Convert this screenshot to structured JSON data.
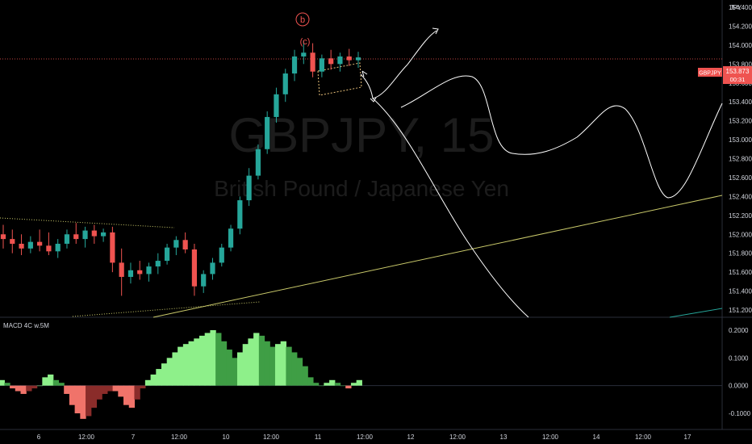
{
  "symbol": "GBPJPY",
  "interval": "15",
  "description": "British Pound / Japanese Yen",
  "currency": "JPY",
  "wave_labels": {
    "circled": "b",
    "paren": "(c)"
  },
  "indicator_label": "MACD 4C w.5M",
  "price_tag": {
    "symbol": "GBPJPY",
    "price": "153.873",
    "countdown": "00:31"
  },
  "colors": {
    "background": "#000000",
    "up": "#26a69a",
    "down": "#ef5350",
    "drawing": "#ffffff",
    "trendline": "#c9c96a",
    "wave_label": "#ef5350",
    "macd_light_green": "#8ef08a",
    "macd_dark_green": "#3f9e45",
    "macd_light_red": "#f0736a",
    "macd_dark_red": "#8a2c2a"
  },
  "chart_data": [
    {
      "type": "candlestick",
      "title": "GBPJPY, 15",
      "ylim": [
        151.2,
        154.4
      ],
      "price_axis_ticks": [
        "154.400",
        "154.200",
        "154.000",
        "153.800",
        "153.600",
        "153.400",
        "153.200",
        "153.000",
        "152.800",
        "152.600",
        "152.400",
        "152.200",
        "152.000",
        "151.800",
        "151.600",
        "151.400",
        "151.200"
      ],
      "time_axis_ticks": [
        "6",
        "12:00",
        "7",
        "12:00",
        "10",
        "12:00",
        "11",
        "12:00",
        "12",
        "12:00",
        "13",
        "12:00",
        "14",
        "12:00",
        "17"
      ],
      "series": [
        {
          "values": [
            [
              152.0,
              152.1,
              151.85,
              151.95
            ],
            [
              151.95,
              152.05,
              151.8,
              151.9
            ],
            [
              151.9,
              152.0,
              151.78,
              151.85
            ],
            [
              151.85,
              151.98,
              151.8,
              151.92
            ],
            [
              151.92,
              152.05,
              151.82,
              151.88
            ],
            [
              151.88,
              152.02,
              151.78,
              151.82
            ],
            [
              151.82,
              151.95,
              151.75,
              151.9
            ],
            [
              151.9,
              152.05,
              151.85,
              152.0
            ],
            [
              152.0,
              152.12,
              151.9,
              151.95
            ],
            [
              151.95,
              152.08,
              151.86,
              152.04
            ],
            [
              152.04,
              152.1,
              151.9,
              151.98
            ],
            [
              151.98,
              152.06,
              151.92,
              152.02
            ],
            [
              152.02,
              152.08,
              151.6,
              151.7
            ],
            [
              151.7,
              151.85,
              151.35,
              151.55
            ],
            [
              151.55,
              151.7,
              151.48,
              151.62
            ],
            [
              151.62,
              151.72,
              151.52,
              151.58
            ],
            [
              151.58,
              151.7,
              151.5,
              151.66
            ],
            [
              151.66,
              151.8,
              151.58,
              151.72
            ],
            [
              151.72,
              151.9,
              151.68,
              151.86
            ],
            [
              151.86,
              151.98,
              151.78,
              151.94
            ],
            [
              151.94,
              152.02,
              151.8,
              151.84
            ],
            [
              151.84,
              151.9,
              151.35,
              151.45
            ],
            [
              151.45,
              151.62,
              151.38,
              151.58
            ],
            [
              151.58,
              151.75,
              151.52,
              151.7
            ],
            [
              151.7,
              151.9,
              151.66,
              151.86
            ],
            [
              151.86,
              152.1,
              151.82,
              152.06
            ],
            [
              152.06,
              152.4,
              152.0,
              152.36
            ],
            [
              152.36,
              152.7,
              152.3,
              152.62
            ],
            [
              152.62,
              152.95,
              152.58,
              152.9
            ],
            [
              152.9,
              153.3,
              152.85,
              153.24
            ],
            [
              153.24,
              153.55,
              153.18,
              153.48
            ],
            [
              153.48,
              153.75,
              153.4,
              153.7
            ],
            [
              153.7,
              153.95,
              153.62,
              153.88
            ],
            [
              153.88,
              154.05,
              153.8,
              153.92
            ],
            [
              153.92,
              154.02,
              153.66,
              153.72
            ],
            [
              153.72,
              153.9,
              153.66,
              153.86
            ],
            [
              153.86,
              153.95,
              153.74,
              153.8
            ],
            [
              153.8,
              153.92,
              153.72,
              153.88
            ],
            [
              153.88,
              153.96,
              153.78,
              153.84
            ],
            [
              153.84,
              153.93,
              153.76,
              153.87
            ]
          ]
        }
      ],
      "annotations": [
        "b",
        "(c)"
      ]
    },
    {
      "type": "bar",
      "title": "MACD 4C w.5M",
      "ylim": [
        -0.13,
        0.22
      ],
      "axis_ticks": [
        "0.2000",
        "0.1000",
        "0.0000",
        "-0.1000"
      ],
      "series": [
        {
          "values": [
            0.02,
            0.01,
            -0.01,
            -0.02,
            -0.03,
            -0.02,
            -0.01,
            0.0,
            0.03,
            0.04,
            0.02,
            0.01,
            -0.03,
            -0.07,
            -0.1,
            -0.12,
            -0.11,
            -0.08,
            -0.05,
            -0.03,
            -0.02,
            -0.02,
            -0.04,
            -0.07,
            -0.08,
            -0.05,
            -0.01,
            0.02,
            0.04,
            0.06,
            0.08,
            0.1,
            0.12,
            0.14,
            0.15,
            0.16,
            0.17,
            0.18,
            0.19,
            0.2,
            0.19,
            0.16,
            0.13,
            0.1,
            0.12,
            0.15,
            0.17,
            0.19,
            0.18,
            0.16,
            0.14,
            0.15,
            0.16,
            0.14,
            0.12,
            0.1,
            0.07,
            0.03,
            0.01,
            0.0,
            0.01,
            0.02,
            0.01,
            0.0,
            -0.01,
            0.01,
            0.02
          ]
        }
      ]
    }
  ]
}
